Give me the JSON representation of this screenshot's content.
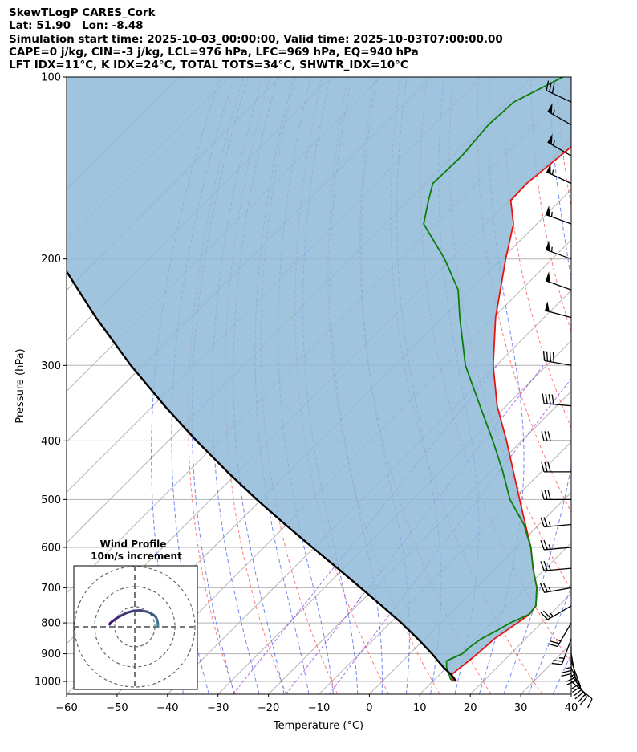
{
  "header": {
    "line1": "SkewTLogP CARES_Cork",
    "line2": "Lat: 51.90   Lon: -8.48",
    "line3": "Simulation start time: 2025-10-03_00:00:00, Valid time: 2025-10-03T07:00:00.00",
    "line4": "CAPE=0 j/kg, CIN=-3 j/kg, LCL=976 hPa, LFC=969 hPa, EQ=940 hPa",
    "line5": "LFT IDX=11°C, K IDX=24°C, TOTAL TOTS=34°C, SHWTR_IDX=10°C"
  },
  "chart_data": {
    "type": "skewt-logp",
    "xlabel": "Temperature (°C)",
    "ylabel": "Pressure (hPa)",
    "xlim": [
      -60,
      40
    ],
    "ylim": [
      1050,
      100
    ],
    "xticks": [
      -60,
      -50,
      -40,
      -30,
      -20,
      -10,
      0,
      10,
      20,
      30,
      40
    ],
    "xtick_labels": [
      "−60",
      "−50",
      "−40",
      "−30",
      "−20",
      "−10",
      "0",
      "10",
      "20",
      "30",
      "40"
    ],
    "pressure_ticks": [
      1000,
      900,
      800,
      700,
      600,
      500,
      400,
      300,
      200,
      100
    ],
    "series": [
      {
        "name": "Temperature",
        "color": "#e8140f",
        "p": [
          1000,
          990,
          975,
          950,
          925,
          900,
          875,
          850,
          825,
          800,
          775,
          750,
          700,
          650,
          600,
          550,
          500,
          450,
          400,
          350,
          300,
          250,
          200,
          175,
          160,
          150,
          135,
          120,
          110,
          100
        ],
        "values": [
          14.4,
          13.3,
          12.4,
          12.7,
          13.1,
          13.4,
          13.6,
          13.8,
          14.5,
          15.2,
          15.9,
          15.5,
          12.1,
          7.5,
          2.9,
          -2.7,
          -8.8,
          -15.5,
          -23.0,
          -31.8,
          -40.6,
          -49.6,
          -59.2,
          -64.6,
          -69.8,
          -70.0,
          -68.8,
          -67.5,
          -67.7,
          -67.3
        ]
      },
      {
        "name": "Dewpoint",
        "color": "#0b7d0b",
        "p": [
          1000,
          990,
          975,
          950,
          925,
          900,
          875,
          850,
          825,
          800,
          775,
          750,
          700,
          650,
          600,
          550,
          500,
          450,
          400,
          350,
          300,
          250,
          225,
          200,
          175,
          160,
          150,
          135,
          120,
          110,
          100
        ],
        "values": [
          14.1,
          13.0,
          12.0,
          10.1,
          8.7,
          10.4,
          10.6,
          11.2,
          12.6,
          13.8,
          15.8,
          15.5,
          12.1,
          7.5,
          2.9,
          -3.0,
          -10.7,
          -17.6,
          -25.7,
          -35.2,
          -46.1,
          -56.7,
          -62.5,
          -71.3,
          -82.4,
          -86.1,
          -88.6,
          -88.3,
          -89.2,
          -88.7,
          -83.9
        ]
      },
      {
        "name": "Parcel",
        "color": "#000000",
        "p": [
          1000,
          975,
          950,
          925,
          900,
          850,
          800,
          750,
          700,
          650,
          600,
          550,
          500,
          450,
          400,
          350,
          300,
          250,
          200,
          150,
          100
        ],
        "values": [
          14.7,
          12.4,
          9.6,
          7.0,
          4.4,
          -1.4,
          -7.8,
          -15.0,
          -22.8,
          -31.2,
          -40.4,
          -50.3,
          -60.9,
          -72.2,
          -84.4,
          -97.7,
          -112.4,
          -128.8,
          -147.8,
          -171.0,
          -202.0
        ]
      }
    ],
    "hodograph": {
      "title": "Wind Profile",
      "subtitle": "10m/s increment",
      "u": [
        11.6,
        11.5,
        11.3,
        11.0,
        10.5,
        9.5,
        8.0,
        5.8,
        3.0,
        -0.5,
        -4.0,
        -7.0,
        -9.5,
        -11.5,
        -12.3,
        -12.5
      ],
      "v": [
        0.0,
        1.8,
        2.8,
        3.8,
        4.8,
        5.8,
        6.8,
        7.6,
        8.2,
        8.0,
        7.0,
        5.5,
        4.0,
        2.5,
        1.8,
        1.2
      ]
    },
    "wind_barbs": {
      "p": [
        1000,
        975,
        950,
        925,
        900,
        875,
        850,
        800,
        750,
        700,
        650,
        600,
        550,
        500,
        450,
        400,
        350,
        300,
        250,
        225,
        200,
        175,
        150,
        135,
        120,
        110
      ],
      "speed_kt": [
        10,
        20,
        20,
        20,
        25,
        25,
        25,
        25,
        25,
        25,
        25,
        25,
        25,
        30,
        30,
        30,
        40,
        40,
        50,
        50,
        55,
        55,
        55,
        55,
        55,
        30
      ],
      "direction_deg": [
        130,
        145,
        155,
        160,
        170,
        180,
        200,
        210,
        240,
        260,
        265,
        265,
        265,
        270,
        270,
        270,
        275,
        280,
        285,
        290,
        290,
        290,
        295,
        300,
        300,
        295
      ]
    }
  }
}
